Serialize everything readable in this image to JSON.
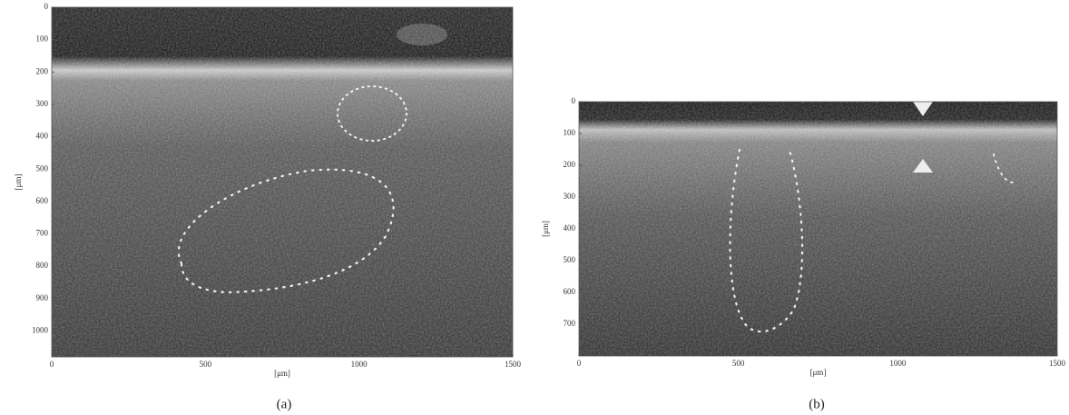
{
  "chart_data": [
    {
      "type": "image",
      "xlabel": "[μm]",
      "ylabel": "[μm]",
      "caption": "(a)",
      "xlim": [
        0,
        1500
      ],
      "ylim": [
        0,
        1080
      ],
      "y_inverted": true,
      "xticks": [
        0,
        500,
        1000,
        1500
      ],
      "yticks": [
        0,
        100,
        200,
        300,
        400,
        500,
        600,
        700,
        800,
        900,
        1000
      ]
    },
    {
      "type": "image",
      "xlabel": "[μm]",
      "ylabel": "[μm]",
      "caption": "(b)",
      "xlim": [
        0,
        1500
      ],
      "ylim": [
        0,
        800
      ],
      "y_inverted": true,
      "xticks": [
        0,
        500,
        1000,
        1500
      ],
      "yticks": [
        0,
        100,
        200,
        300,
        400,
        500,
        600,
        700
      ]
    }
  ]
}
